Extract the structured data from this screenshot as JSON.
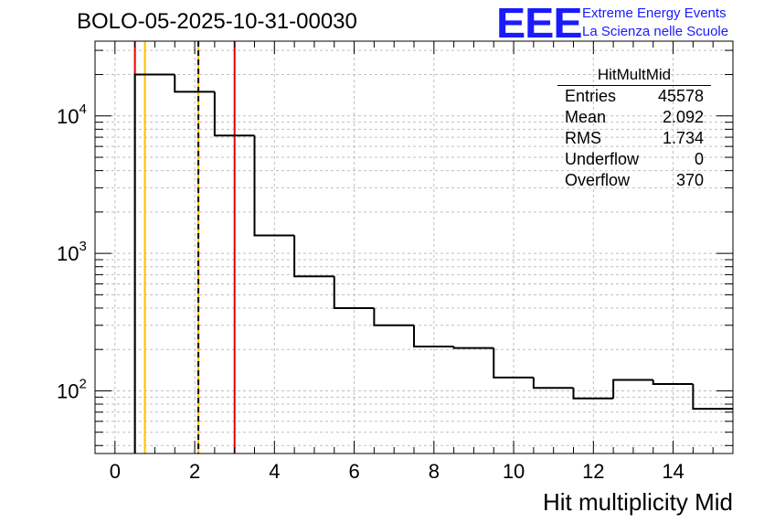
{
  "title": "BOLO-05-2025-10-31-00030",
  "logo": {
    "letters": "EEE",
    "line1": "Extreme Energy Events",
    "line2": "La Scienza nelle Scuole"
  },
  "stats": {
    "name": "HitMultMid",
    "rows": [
      {
        "label": "Entries",
        "value": "45578"
      },
      {
        "label": "Mean",
        "value": "2.092"
      },
      {
        "label": "RMS",
        "value": "1.734"
      },
      {
        "label": "Underflow",
        "value": "0"
      },
      {
        "label": "Overflow",
        "value": "370"
      }
    ]
  },
  "colors": {
    "histogram": "#000000",
    "red_lines": "#e60000",
    "yellow_lines": "#ffbf00",
    "grid": "#bfbfbf",
    "logo": "#1a1aff"
  },
  "chart_data": {
    "type": "bar",
    "title": "BOLO-05-2025-10-31-00030",
    "xlabel": "Hit multiplicity Mid",
    "ylabel": "",
    "yscale": "log",
    "xlim": [
      -0.5,
      15.5
    ],
    "ylim": [
      35,
      35000
    ],
    "grid": true,
    "legend": "none",
    "bin_width": 1,
    "bin_lows": [
      0.5,
      1.5,
      2.5,
      3.5,
      4.5,
      5.5,
      6.5,
      7.5,
      8.5,
      9.5,
      10.5,
      11.5,
      12.5,
      13.5,
      14.5
    ],
    "values": [
      20000,
      15000,
      7200,
      1350,
      680,
      400,
      300,
      210,
      205,
      125,
      105,
      88,
      120,
      112,
      74
    ],
    "x_ticks": [
      0,
      2,
      4,
      6,
      8,
      10,
      12,
      14
    ],
    "y_ticks": [
      {
        "value": 100,
        "base": "10",
        "exp": "2"
      },
      {
        "value": 1000,
        "base": "10",
        "exp": "3"
      },
      {
        "value": 10000,
        "base": "10",
        "exp": "4"
      }
    ],
    "vertical_lines": [
      {
        "x": 0.5,
        "color": "red",
        "style": "solid"
      },
      {
        "x": 3.0,
        "color": "red",
        "style": "solid"
      },
      {
        "x": 0.75,
        "color": "yellow",
        "style": "solid"
      },
      {
        "x": 2.092,
        "color": "yellow",
        "style": "solid"
      },
      {
        "x": 2.092,
        "color": "black",
        "style": "dashed"
      }
    ]
  }
}
